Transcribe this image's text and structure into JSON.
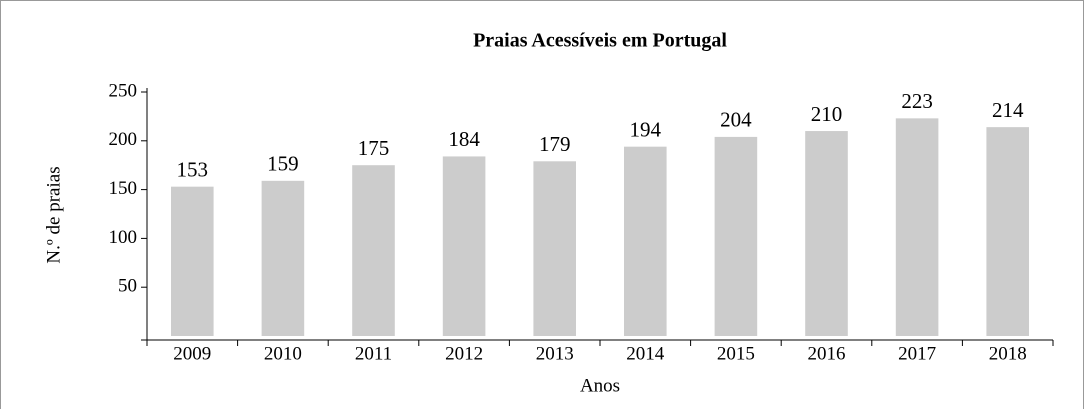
{
  "chart_data": {
    "type": "bar",
    "title": "Praias Acessíveis em Portugal",
    "x_label": "Anos",
    "y_label": "N.º de praias",
    "categories": [
      "2009",
      "2010",
      "2011",
      "2012",
      "2013",
      "2014",
      "2015",
      "2016",
      "2017",
      "2018"
    ],
    "values": [
      153,
      159,
      175,
      184,
      179,
      194,
      204,
      210,
      223,
      214
    ],
    "color": "#cccccc",
    "ylim": [
      0,
      250
    ],
    "yticks": [
      50,
      100,
      150,
      200,
      250
    ]
  }
}
